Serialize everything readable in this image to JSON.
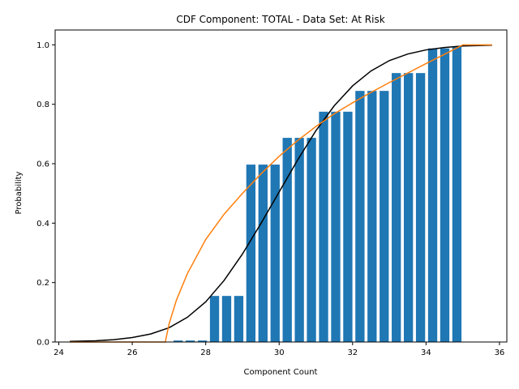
{
  "chart_data": {
    "type": "bar",
    "title": "CDF Component: TOTAL - Data Set: At Risk",
    "xlabel": "Component Count",
    "ylabel": "Probability",
    "xlim": [
      23.9,
      36.2
    ],
    "ylim": [
      0,
      1.05
    ],
    "xticks": [
      24,
      26,
      28,
      30,
      32,
      34,
      36
    ],
    "yticks": [
      0.0,
      0.2,
      0.4,
      0.6,
      0.8,
      1.0
    ],
    "grid": false,
    "bar_width": 0.25,
    "bar_color": "#1f77b4",
    "bars": {
      "x": [
        27.25,
        27.58,
        27.91,
        28.24,
        28.57,
        28.9,
        29.23,
        29.56,
        29.89,
        30.22,
        30.55,
        30.88,
        31.21,
        31.54,
        31.87,
        32.2,
        32.53,
        32.86,
        33.19,
        33.52,
        33.85,
        34.18,
        34.51,
        34.84
      ],
      "values": [
        0.005,
        0.005,
        0.005,
        0.155,
        0.155,
        0.155,
        0.597,
        0.597,
        0.597,
        0.687,
        0.687,
        0.687,
        0.775,
        0.775,
        0.775,
        0.845,
        0.845,
        0.845,
        0.905,
        0.905,
        0.905,
        0.988,
        0.988,
        0.995
      ]
    },
    "lines": [
      {
        "color": "#000000",
        "x": [
          24.3,
          25,
          25.5,
          26,
          26.5,
          27,
          27.5,
          28,
          28.5,
          29,
          29.5,
          30,
          30.5,
          31,
          31.5,
          32,
          32.5,
          33,
          33.5,
          34,
          34.5,
          35,
          35.5,
          35.8
        ],
        "y": [
          0.002,
          0.004,
          0.008,
          0.015,
          0.027,
          0.048,
          0.083,
          0.135,
          0.207,
          0.296,
          0.398,
          0.505,
          0.612,
          0.711,
          0.795,
          0.862,
          0.912,
          0.947,
          0.969,
          0.983,
          0.991,
          0.996,
          0.998,
          0.999
        ]
      },
      {
        "color": "#ff7f0e",
        "x": [
          24.3,
          26.9,
          27.0,
          27.2,
          27.5,
          28.0,
          28.5,
          29.0,
          29.5,
          30.0,
          30.5,
          31.0,
          31.5,
          32.0,
          32.5,
          33.0,
          33.5,
          34.0,
          34.5,
          35.0,
          35.8
        ],
        "y": [
          0.0,
          0.0,
          0.06,
          0.14,
          0.23,
          0.345,
          0.43,
          0.5,
          0.565,
          0.625,
          0.678,
          0.725,
          0.768,
          0.805,
          0.84,
          0.873,
          0.905,
          0.937,
          0.968,
          1.0,
          1.0
        ]
      }
    ]
  }
}
